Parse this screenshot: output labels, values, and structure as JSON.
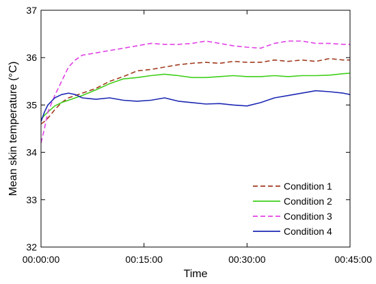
{
  "chart_data": {
    "type": "line",
    "xlabel": "Time",
    "ylabel": "Mean skin temperature (°C)",
    "x_ticks": [
      "00:00:00",
      "00:15:00",
      "00:30:00",
      "00:45:00"
    ],
    "x_tick_minutes": [
      0,
      15,
      30,
      45
    ],
    "xlim": [
      0,
      45
    ],
    "ylim": [
      32,
      37
    ],
    "y_ticks": [
      32,
      33,
      34,
      35,
      36,
      37
    ],
    "x_unit": "minutes",
    "legend_position": "bottom-right",
    "grid": false,
    "x": [
      0,
      0.5,
      1,
      2,
      3,
      4,
      5,
      6,
      8,
      10,
      12,
      14,
      16,
      18,
      20,
      22,
      24,
      26,
      28,
      30,
      32,
      34,
      36,
      38,
      40,
      42,
      44,
      45
    ],
    "series": [
      {
        "name": "Condition 1",
        "color": "#a0391c",
        "dash": "dashed",
        "values": [
          34.6,
          34.65,
          34.72,
          34.9,
          35.05,
          35.15,
          35.2,
          35.25,
          35.35,
          35.5,
          35.6,
          35.72,
          35.75,
          35.8,
          35.85,
          35.88,
          35.9,
          35.88,
          35.92,
          35.9,
          35.9,
          35.95,
          35.92,
          35.95,
          35.92,
          35.98,
          35.95,
          35.95
        ]
      },
      {
        "name": "Condition 2",
        "color": "#3ccf17",
        "dash": "solid",
        "values": [
          34.7,
          34.78,
          34.85,
          34.98,
          35.05,
          35.1,
          35.15,
          35.2,
          35.32,
          35.45,
          35.55,
          35.58,
          35.62,
          35.65,
          35.62,
          35.58,
          35.58,
          35.6,
          35.62,
          35.6,
          35.6,
          35.62,
          35.6,
          35.62,
          35.62,
          35.63,
          35.66,
          35.67
        ]
      },
      {
        "name": "Condition 3",
        "color": "#e23ee6",
        "dash": "dashed",
        "values": [
          34.2,
          34.5,
          34.85,
          35.2,
          35.5,
          35.8,
          35.95,
          36.05,
          36.1,
          36.15,
          36.2,
          36.25,
          36.3,
          36.28,
          36.28,
          36.3,
          36.35,
          36.3,
          36.25,
          36.22,
          36.2,
          36.3,
          36.35,
          36.35,
          36.3,
          36.3,
          36.28,
          36.28
        ]
      },
      {
        "name": "Condition 4",
        "color": "#1c27b3",
        "dash": "solid",
        "values": [
          34.65,
          34.85,
          35.0,
          35.15,
          35.22,
          35.25,
          35.22,
          35.15,
          35.12,
          35.15,
          35.1,
          35.08,
          35.1,
          35.15,
          35.08,
          35.05,
          35.02,
          35.03,
          35.0,
          34.98,
          35.05,
          35.15,
          35.2,
          35.25,
          35.3,
          35.28,
          35.25,
          35.22
        ]
      }
    ]
  }
}
